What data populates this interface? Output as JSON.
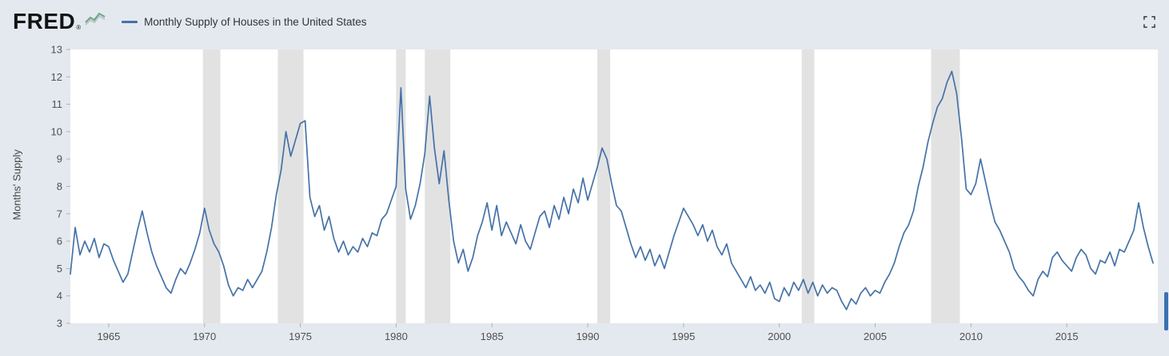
{
  "header": {
    "logo_text": "FRED",
    "registered_mark": "®",
    "legend_label": "Monthly Supply of Houses in the United States"
  },
  "colors": {
    "page_bg": "#e4e9ef",
    "plot_bg": "#ffffff",
    "line": "#4572a7",
    "recession": "#e2e2e2",
    "tick_mark": "#b0b0b0",
    "tick_text": "#505050",
    "axis_label": "#444444",
    "scrollbar": "#3a72b0",
    "logo_icon_green": "#6ba583",
    "logo_icon_gray": "#b9c6c9",
    "fullscreen_icon": "#444444"
  },
  "chart_data": {
    "type": "line",
    "title": "Monthly Supply of Houses in the United States",
    "xlabel": "",
    "ylabel": "Months' Supply",
    "x_start": 1963.0,
    "x_step": 0.25,
    "x_range": [
      1963.0,
      2019.75
    ],
    "ylim": [
      3,
      13
    ],
    "y_ticks": [
      3,
      4,
      5,
      6,
      7,
      8,
      9,
      10,
      11,
      12,
      13
    ],
    "x_ticks": [
      1965,
      1970,
      1975,
      1980,
      1985,
      1990,
      1995,
      2000,
      2005,
      2010,
      2015
    ],
    "grid": false,
    "legend_position": "top-left",
    "recession_bands": [
      [
        1969.92,
        1970.83
      ],
      [
        1973.83,
        1975.17
      ],
      [
        1980.0,
        1980.5
      ],
      [
        1981.5,
        1982.83
      ],
      [
        1990.5,
        1991.17
      ],
      [
        2001.17,
        2001.83
      ],
      [
        2007.92,
        2009.42
      ]
    ],
    "series": [
      {
        "name": "Monthly Supply of Houses in the United States",
        "values": [
          4.8,
          6.5,
          5.5,
          6.0,
          5.6,
          6.1,
          5.4,
          5.9,
          5.8,
          5.3,
          4.9,
          4.5,
          4.8,
          5.6,
          6.4,
          7.1,
          6.3,
          5.6,
          5.1,
          4.7,
          4.3,
          4.1,
          4.6,
          5.0,
          4.8,
          5.2,
          5.7,
          6.3,
          7.2,
          6.4,
          5.9,
          5.6,
          5.1,
          4.4,
          4.0,
          4.3,
          4.2,
          4.6,
          4.3,
          4.6,
          4.9,
          5.6,
          6.5,
          7.7,
          8.6,
          10.0,
          9.1,
          9.7,
          10.3,
          10.4,
          7.6,
          6.9,
          7.3,
          6.4,
          6.9,
          6.1,
          5.6,
          6.0,
          5.5,
          5.8,
          5.6,
          6.1,
          5.8,
          6.3,
          6.2,
          6.8,
          7.0,
          7.5,
          8.0,
          11.6,
          7.9,
          6.8,
          7.3,
          8.1,
          9.2,
          11.3,
          9.4,
          8.1,
          9.3,
          7.5,
          6.0,
          5.2,
          5.7,
          4.9,
          5.4,
          6.2,
          6.7,
          7.4,
          6.4,
          7.3,
          6.2,
          6.7,
          6.3,
          5.9,
          6.6,
          6.0,
          5.7,
          6.3,
          6.9,
          7.1,
          6.5,
          7.3,
          6.8,
          7.6,
          7.0,
          7.9,
          7.4,
          8.3,
          7.5,
          8.1,
          8.7,
          9.4,
          9.0,
          8.1,
          7.3,
          7.1,
          6.5,
          5.9,
          5.4,
          5.8,
          5.3,
          5.7,
          5.1,
          5.5,
          5.0,
          5.6,
          6.2,
          6.7,
          7.2,
          6.9,
          6.6,
          6.2,
          6.6,
          6.0,
          6.4,
          5.8,
          5.5,
          5.9,
          5.2,
          4.9,
          4.6,
          4.3,
          4.7,
          4.2,
          4.4,
          4.1,
          4.5,
          3.9,
          3.8,
          4.3,
          4.0,
          4.5,
          4.2,
          4.6,
          4.1,
          4.5,
          4.0,
          4.4,
          4.1,
          4.3,
          4.2,
          3.8,
          3.5,
          3.9,
          3.7,
          4.1,
          4.3,
          4.0,
          4.2,
          4.1,
          4.5,
          4.8,
          5.2,
          5.8,
          6.3,
          6.6,
          7.1,
          8.0,
          8.7,
          9.6,
          10.3,
          10.9,
          11.2,
          11.8,
          12.2,
          11.4,
          9.8,
          7.9,
          7.7,
          8.1,
          9.0,
          8.2,
          7.4,
          6.7,
          6.4,
          6.0,
          5.6,
          5.0,
          4.7,
          4.5,
          4.2,
          4.0,
          4.6,
          4.9,
          4.7,
          5.4,
          5.6,
          5.3,
          5.1,
          4.9,
          5.4,
          5.7,
          5.5,
          5.0,
          4.8,
          5.3,
          5.2,
          5.6,
          5.1,
          5.7,
          5.6,
          6.0,
          6.4,
          7.4,
          6.5,
          5.8,
          5.2
        ]
      }
    ]
  }
}
